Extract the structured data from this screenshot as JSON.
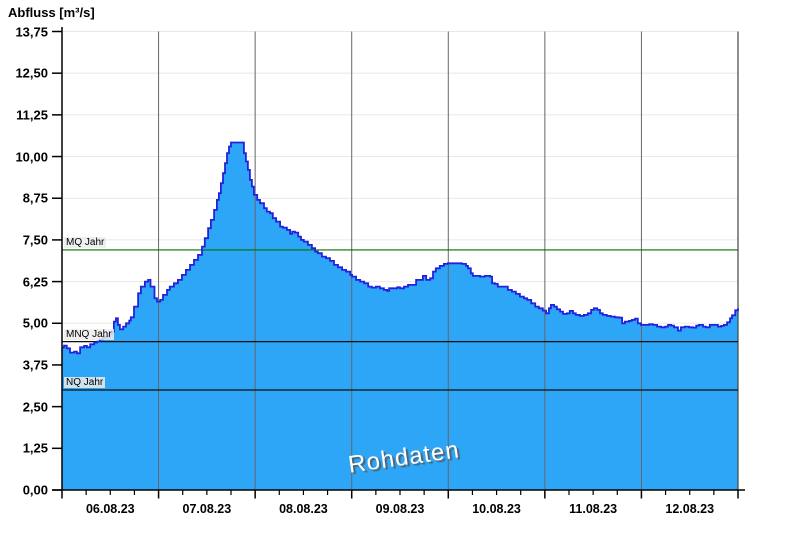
{
  "header": {
    "title": "Abfluss [m³/s]"
  },
  "watermark": {
    "text": "Rohdaten"
  },
  "chart_data": {
    "type": "area",
    "title": "Abfluss [m³/s]",
    "xlabel": "",
    "ylabel": "Abfluss [m³/s]",
    "ylim": [
      0,
      13.75
    ],
    "y_tick_step": 1.25,
    "y_tick_labels": [
      "13,75",
      "12,50",
      "11,25",
      "10,00",
      "8,75",
      "7,50",
      "6,25",
      "5,00",
      "3,75",
      "2,50",
      "1,25",
      "0,00"
    ],
    "x_day_labels": [
      "06.08.23",
      "07.08.23",
      "08.08.23",
      "09.08.23",
      "10.08.23",
      "11.08.23",
      "12.08.23"
    ],
    "x_total_hours": 168,
    "x_minor_tick_hours": 6,
    "grid": "on",
    "legend": "none",
    "series_name": "Rohdaten",
    "reference_lines": [
      {
        "label": "MQ Jahr",
        "value": 7.2,
        "color": "#007000"
      },
      {
        "label": "MNQ Jahr",
        "value": 4.45,
        "color": "#101010"
      },
      {
        "label": "NQ Jahr",
        "value": 3.0,
        "color": "#101010"
      }
    ],
    "colors": {
      "fill": "#2ea6f8",
      "line": "#2222dd",
      "grid_light": "#e8e8e8",
      "grid_day": "#666666",
      "axis": "#000000"
    },
    "points": [
      [
        0,
        4.27
      ],
      [
        0.5,
        4.33
      ],
      [
        1.2,
        4.25
      ],
      [
        2,
        4.12
      ],
      [
        3,
        4.15
      ],
      [
        3.7,
        4.1
      ],
      [
        4.5,
        4.28
      ],
      [
        5.5,
        4.32
      ],
      [
        6.2,
        4.28
      ],
      [
        7,
        4.37
      ],
      [
        8,
        4.42
      ],
      [
        8.7,
        4.45
      ],
      [
        9.4,
        4.52
      ],
      [
        10.2,
        4.58
      ],
      [
        10.9,
        4.6
      ],
      [
        11.7,
        4.68
      ],
      [
        12.4,
        4.75
      ],
      [
        12.9,
        5.05
      ],
      [
        13.4,
        5.15
      ],
      [
        13.9,
        4.95
      ],
      [
        14.4,
        4.82
      ],
      [
        15.2,
        4.9
      ],
      [
        15.9,
        5
      ],
      [
        16.7,
        5.08
      ],
      [
        17.1,
        5.18
      ],
      [
        17.9,
        5.5
      ],
      [
        18.9,
        5.9
      ],
      [
        19.6,
        6.1
      ],
      [
        20.6,
        6.25
      ],
      [
        21.4,
        6.3
      ],
      [
        22,
        6.1
      ],
      [
        23,
        5.75
      ],
      [
        23.6,
        5.65
      ],
      [
        24.4,
        5.7
      ],
      [
        25.1,
        5.85
      ],
      [
        26.1,
        6
      ],
      [
        26.8,
        6.1
      ],
      [
        27.8,
        6.2
      ],
      [
        28.8,
        6.3
      ],
      [
        29.8,
        6.45
      ],
      [
        30.8,
        6.6
      ],
      [
        31.8,
        6.75
      ],
      [
        32.8,
        6.9
      ],
      [
        33.8,
        7.05
      ],
      [
        34.8,
        7.3
      ],
      [
        35.5,
        7.55
      ],
      [
        36.3,
        7.85
      ],
      [
        37,
        8.1
      ],
      [
        37.8,
        8.4
      ],
      [
        38.5,
        8.7
      ],
      [
        39,
        8.9
      ],
      [
        39.5,
        9.2
      ],
      [
        40,
        9.5
      ],
      [
        40.5,
        9.8
      ],
      [
        41,
        10.1
      ],
      [
        41.5,
        10.3
      ],
      [
        42,
        10.42
      ],
      [
        44.7,
        10.42
      ],
      [
        45.2,
        10.1
      ],
      [
        45.7,
        9.85
      ],
      [
        46.2,
        9.6
      ],
      [
        46.7,
        9.3
      ],
      [
        47.2,
        9.1
      ],
      [
        47.7,
        8.85
      ],
      [
        48.5,
        8.7
      ],
      [
        49.2,
        8.6
      ],
      [
        50.2,
        8.45
      ],
      [
        50.9,
        8.35
      ],
      [
        51.7,
        8.3
      ],
      [
        52.4,
        8.15
      ],
      [
        53.2,
        8.05
      ],
      [
        54.2,
        7.9
      ],
      [
        54.9,
        7.87
      ],
      [
        55.9,
        7.8
      ],
      [
        56.7,
        7.68
      ],
      [
        57.2,
        7.75
      ],
      [
        57.9,
        7.72
      ],
      [
        58.7,
        7.6
      ],
      [
        59.4,
        7.5
      ],
      [
        60.1,
        7.45
      ],
      [
        61.1,
        7.35
      ],
      [
        62.1,
        7.25
      ],
      [
        62.9,
        7.15
      ],
      [
        63.6,
        7.1
      ],
      [
        64.6,
        7
      ],
      [
        65.6,
        6.95
      ],
      [
        66.6,
        6.87
      ],
      [
        67.6,
        6.75
      ],
      [
        68.6,
        6.68
      ],
      [
        69.6,
        6.6
      ],
      [
        70.6,
        6.55
      ],
      [
        71.6,
        6.45
      ],
      [
        72.1,
        6.4
      ],
      [
        73.1,
        6.3
      ],
      [
        74.1,
        6.25
      ],
      [
        75.1,
        6.2
      ],
      [
        76.1,
        6.1
      ],
      [
        77,
        6.07
      ],
      [
        78,
        6.1
      ],
      [
        79,
        6.05
      ],
      [
        80,
        6
      ],
      [
        80.8,
        5.97
      ],
      [
        81.3,
        6.05
      ],
      [
        82.3,
        6.05
      ],
      [
        83.3,
        6.08
      ],
      [
        84,
        6.05
      ],
      [
        85,
        6.1
      ],
      [
        86,
        6.15
      ],
      [
        87,
        6.15
      ],
      [
        88,
        6.3
      ],
      [
        89,
        6.3
      ],
      [
        89.7,
        6.42
      ],
      [
        90.5,
        6.3
      ],
      [
        91.5,
        6.35
      ],
      [
        92.2,
        6.55
      ],
      [
        92.9,
        6.65
      ],
      [
        93.9,
        6.72
      ],
      [
        94.9,
        6.78
      ],
      [
        95.9,
        6.8
      ],
      [
        97.7,
        6.8
      ],
      [
        99.4,
        6.78
      ],
      [
        100.4,
        6.72
      ],
      [
        100.9,
        6.65
      ],
      [
        101.6,
        6.5
      ],
      [
        102.1,
        6.42
      ],
      [
        103.9,
        6.4
      ],
      [
        105.1,
        6.42
      ],
      [
        106.4,
        6.4
      ],
      [
        106.9,
        6.2
      ],
      [
        107.6,
        6.18
      ],
      [
        108.3,
        6.1
      ],
      [
        109.6,
        6.1
      ],
      [
        110.8,
        6
      ],
      [
        111.8,
        5.95
      ],
      [
        112.8,
        5.88
      ],
      [
        113.8,
        5.8
      ],
      [
        114.8,
        5.75
      ],
      [
        115.6,
        5.7
      ],
      [
        116.6,
        5.6
      ],
      [
        117.6,
        5.5
      ],
      [
        118.5,
        5.45
      ],
      [
        119.5,
        5.38
      ],
      [
        120.3,
        5.3
      ],
      [
        121,
        5.45
      ],
      [
        121.5,
        5.55
      ],
      [
        122.3,
        5.5
      ],
      [
        123,
        5.42
      ],
      [
        123.8,
        5.35
      ],
      [
        124.5,
        5.28
      ],
      [
        125.5,
        5.3
      ],
      [
        126.2,
        5.37
      ],
      [
        127,
        5.3
      ],
      [
        127.7,
        5.25
      ],
      [
        128.7,
        5.22
      ],
      [
        129.7,
        5.25
      ],
      [
        130.7,
        5.3
      ],
      [
        131.5,
        5.4
      ],
      [
        132.2,
        5.45
      ],
      [
        133,
        5.4
      ],
      [
        133.7,
        5.3
      ],
      [
        134.4,
        5.25
      ],
      [
        135.4,
        5.22
      ],
      [
        136.4,
        5.2
      ],
      [
        137.4,
        5.18
      ],
      [
        138.4,
        5.17
      ],
      [
        139.2,
        5
      ],
      [
        139.9,
        5.05
      ],
      [
        140.9,
        5.07
      ],
      [
        141.6,
        5.1
      ],
      [
        142.4,
        5.14
      ],
      [
        143.1,
        5
      ],
      [
        143.9,
        4.95
      ],
      [
        144.9,
        4.95
      ],
      [
        145.9,
        4.97
      ],
      [
        146.9,
        4.95
      ],
      [
        147.9,
        4.9
      ],
      [
        148.9,
        4.88
      ],
      [
        149.9,
        4.9
      ],
      [
        150.6,
        4.95
      ],
      [
        151.4,
        4.93
      ],
      [
        152.1,
        4.88
      ],
      [
        153.1,
        4.78
      ],
      [
        153.8,
        4.88
      ],
      [
        154.8,
        4.9
      ],
      [
        155.8,
        4.88
      ],
      [
        156.8,
        4.87
      ],
      [
        157.6,
        4.93
      ],
      [
        158.3,
        4.95
      ],
      [
        159.3,
        4.9
      ],
      [
        160,
        4.88
      ],
      [
        161,
        4.95
      ],
      [
        162,
        4.95
      ],
      [
        163,
        4.9
      ],
      [
        163.8,
        4.92
      ],
      [
        164.5,
        4.95
      ],
      [
        165.3,
        5.03
      ],
      [
        166,
        5.15
      ],
      [
        166.5,
        5.24
      ],
      [
        167.3,
        5.39
      ],
      [
        168,
        5.45
      ]
    ]
  }
}
